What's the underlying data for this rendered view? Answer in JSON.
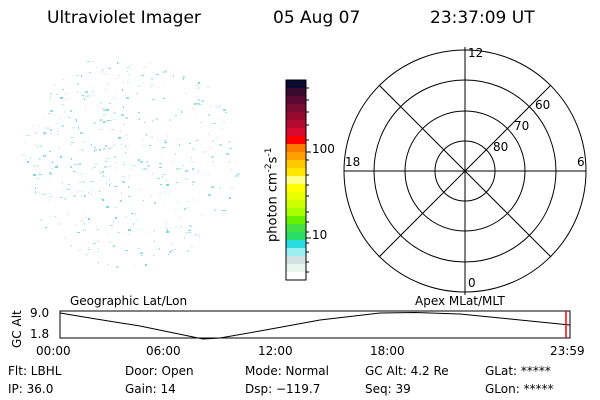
{
  "header": {
    "title": "Ultraviolet Imager",
    "date": "05 Aug 07",
    "time": "23:37:09 UT"
  },
  "colorbar": {
    "label": "photon cm",
    "label_sup1": "-2",
    "label_s": "s",
    "label_sup2": "-1",
    "ticks": [
      "100",
      "10"
    ],
    "colors": [
      "#0a0a30",
      "#3a0a2e",
      "#5a0a32",
      "#7a0a30",
      "#960a30",
      "#b40a30",
      "#d80a30",
      "#ff0000",
      "#ff7a00",
      "#ffa000",
      "#ffc800",
      "#ffe600",
      "#ffff88",
      "#ffff00",
      "#eaff00",
      "#ccff00",
      "#a8ff00",
      "#66f000",
      "#44e044",
      "#28dd66",
      "#28dddd",
      "#99eef0",
      "#d2e2e2",
      "#e8f4ee",
      "#ffffff"
    ]
  },
  "polar": {
    "mlt_labels": [
      "12",
      "6",
      "0",
      "18"
    ],
    "lat_labels": [
      "60",
      "70",
      "80"
    ]
  },
  "timeline": {
    "left_label": "Geographic Lat/Lon",
    "right_label": "Apex MLat/MLT",
    "y_axis_label": "GC Alt",
    "y_ticks": [
      "9.0",
      "1.8"
    ],
    "x_ticks": [
      "00:00",
      "06:00",
      "12:00",
      "18:00",
      "23:59"
    ],
    "current_marker_color": "#ff0000"
  },
  "status": {
    "row1": [
      "Flt: LBHL",
      "Door: Open",
      "Mode: Normal",
      "GC Alt: 4.2 Re",
      "GLat: *****"
    ],
    "row2": [
      "IP: 36.0",
      "Gain: 14",
      "Dsp: −119.7",
      "Seq: 39",
      "GLon: *****"
    ]
  }
}
